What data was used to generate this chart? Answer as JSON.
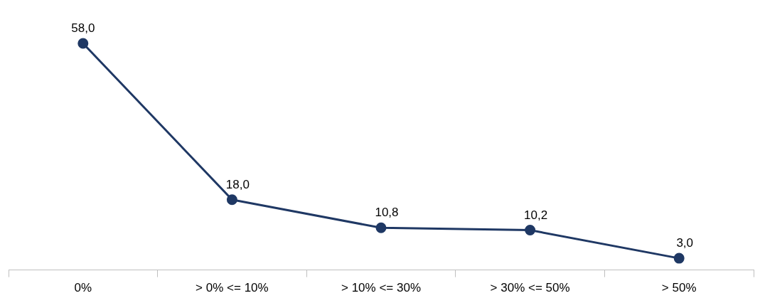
{
  "chart_data": {
    "type": "line",
    "categories": [
      "0%",
      "> 0% <= 10%",
      "> 10% <= 30%",
      "> 30% <= 50%",
      "> 50%"
    ],
    "series": [
      {
        "color": "#1f3864",
        "values": [
          58.0,
          18.0,
          10.8,
          10.2,
          3.0
        ],
        "value_labels": [
          "58,0",
          "18,0",
          "10,8",
          "10,2",
          "3,0"
        ]
      }
    ],
    "tick_labels": "x",
    "marker": "circle",
    "line_style": "solid",
    "grid": false,
    "legend": false
  }
}
